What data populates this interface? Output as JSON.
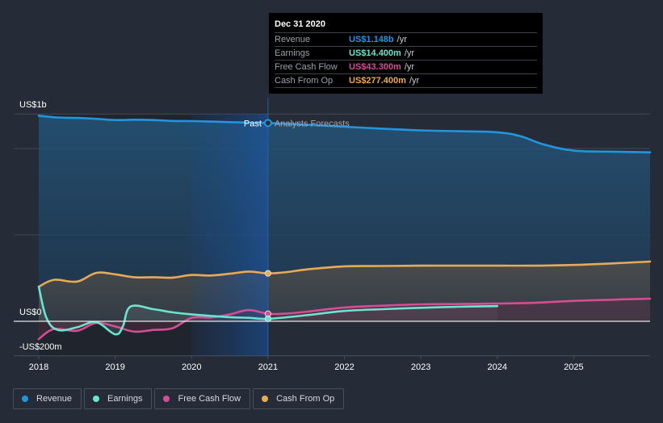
{
  "tooltip": {
    "date": "Dec 31 2020",
    "rows": [
      {
        "label": "Revenue",
        "value": "US$1.148b",
        "unit": "/yr",
        "color": "#2394df"
      },
      {
        "label": "Earnings",
        "value": "US$14.400m",
        "unit": "/yr",
        "color": "#6ce3cf"
      },
      {
        "label": "Free Cash Flow",
        "value": "US$43.300m",
        "unit": "/yr",
        "color": "#d34f95"
      },
      {
        "label": "Cash From Op",
        "value": "US$277.400m",
        "unit": "/yr",
        "color": "#e8aa57"
      }
    ]
  },
  "legend": [
    {
      "label": "Revenue",
      "color": "#2394df"
    },
    {
      "label": "Earnings",
      "color": "#6ce3cf"
    },
    {
      "label": "Free Cash Flow",
      "color": "#d34f95"
    },
    {
      "label": "Cash From Op",
      "color": "#e8aa57"
    }
  ],
  "chart_data": {
    "type": "line",
    "title": "",
    "xlabel": "",
    "ylabel": "",
    "y_tick_labels": [
      {
        "value": 1000,
        "label": "US$1b"
      },
      {
        "value": 0,
        "label": "US$0"
      },
      {
        "value": -200,
        "label": "-US$200m"
      }
    ],
    "x_tick_labels": [
      "2018",
      "2019",
      "2020",
      "2021",
      "2022",
      "2023",
      "2024",
      "2025"
    ],
    "xlim": [
      2018,
      2026
    ],
    "ylim": [
      -200,
      1200
    ],
    "units": "US$ millions",
    "grid": true,
    "past_label": "Past",
    "forecast_label": "Analysts Forecasts",
    "divider_x": 2021.0,
    "highlight_range": [
      2020.0,
      2021.0
    ],
    "series": [
      {
        "name": "Revenue",
        "color": "#2394df",
        "points": [
          [
            2018.0,
            1190
          ],
          [
            2018.25,
            1180
          ],
          [
            2018.5,
            1177
          ],
          [
            2018.75,
            1172
          ],
          [
            2019.0,
            1165
          ],
          [
            2019.25,
            1167
          ],
          [
            2019.5,
            1165
          ],
          [
            2019.75,
            1160
          ],
          [
            2020.0,
            1159
          ],
          [
            2020.25,
            1156
          ],
          [
            2020.5,
            1153
          ],
          [
            2020.75,
            1150
          ],
          [
            2021.0,
            1148
          ],
          [
            2021.5,
            1138
          ],
          [
            2022.0,
            1126
          ],
          [
            2022.5,
            1115
          ],
          [
            2023.0,
            1105
          ],
          [
            2023.5,
            1100
          ],
          [
            2024.0,
            1094
          ],
          [
            2024.3,
            1072
          ],
          [
            2024.6,
            1025
          ],
          [
            2025.0,
            988
          ],
          [
            2025.5,
            982
          ],
          [
            2026.0,
            978
          ]
        ]
      },
      {
        "name": "Earnings",
        "color": "#6ce3cf",
        "points": [
          [
            2018.0,
            200
          ],
          [
            2018.1,
            20
          ],
          [
            2018.25,
            -50
          ],
          [
            2018.5,
            -35
          ],
          [
            2018.75,
            -5
          ],
          [
            2019.0,
            -75
          ],
          [
            2019.1,
            -30
          ],
          [
            2019.2,
            85
          ],
          [
            2019.5,
            70
          ],
          [
            2019.75,
            52
          ],
          [
            2020.0,
            40
          ],
          [
            2020.5,
            24
          ],
          [
            2020.75,
            20
          ],
          [
            2021.0,
            14.4
          ],
          [
            2021.5,
            35
          ],
          [
            2022.0,
            60
          ],
          [
            2022.5,
            70
          ],
          [
            2023.0,
            78
          ],
          [
            2023.5,
            84
          ],
          [
            2024.0,
            88
          ]
        ]
      },
      {
        "name": "Free Cash Flow",
        "color": "#d34f95",
        "points": [
          [
            2018.0,
            -103
          ],
          [
            2018.2,
            -45
          ],
          [
            2018.5,
            -55
          ],
          [
            2018.75,
            -10
          ],
          [
            2019.0,
            -30
          ],
          [
            2019.25,
            -60
          ],
          [
            2019.5,
            -50
          ],
          [
            2019.75,
            -40
          ],
          [
            2020.0,
            20
          ],
          [
            2020.25,
            22
          ],
          [
            2020.5,
            40
          ],
          [
            2020.75,
            65
          ],
          [
            2021.0,
            43.3
          ],
          [
            2021.25,
            45
          ],
          [
            2021.5,
            55
          ],
          [
            2022.0,
            80
          ],
          [
            2022.5,
            90
          ],
          [
            2023.0,
            98
          ],
          [
            2023.5,
            100
          ],
          [
            2024.0,
            103
          ],
          [
            2024.5,
            107
          ],
          [
            2025.0,
            118
          ],
          [
            2025.5,
            125
          ],
          [
            2026.0,
            131
          ]
        ]
      },
      {
        "name": "Cash From Op",
        "color": "#e8aa57",
        "points": [
          [
            2018.0,
            200
          ],
          [
            2018.2,
            240
          ],
          [
            2018.5,
            230
          ],
          [
            2018.75,
            280
          ],
          [
            2019.0,
            272
          ],
          [
            2019.25,
            255
          ],
          [
            2019.5,
            255
          ],
          [
            2019.75,
            253
          ],
          [
            2020.0,
            268
          ],
          [
            2020.25,
            265
          ],
          [
            2020.5,
            275
          ],
          [
            2020.75,
            288
          ],
          [
            2021.0,
            277.4
          ],
          [
            2021.25,
            285
          ],
          [
            2021.5,
            300
          ],
          [
            2022.0,
            318
          ],
          [
            2022.5,
            320
          ],
          [
            2023.0,
            322
          ],
          [
            2023.5,
            322
          ],
          [
            2024.0,
            322
          ],
          [
            2024.5,
            322
          ],
          [
            2025.0,
            326
          ],
          [
            2025.5,
            335
          ],
          [
            2026.0,
            346
          ]
        ]
      }
    ]
  }
}
